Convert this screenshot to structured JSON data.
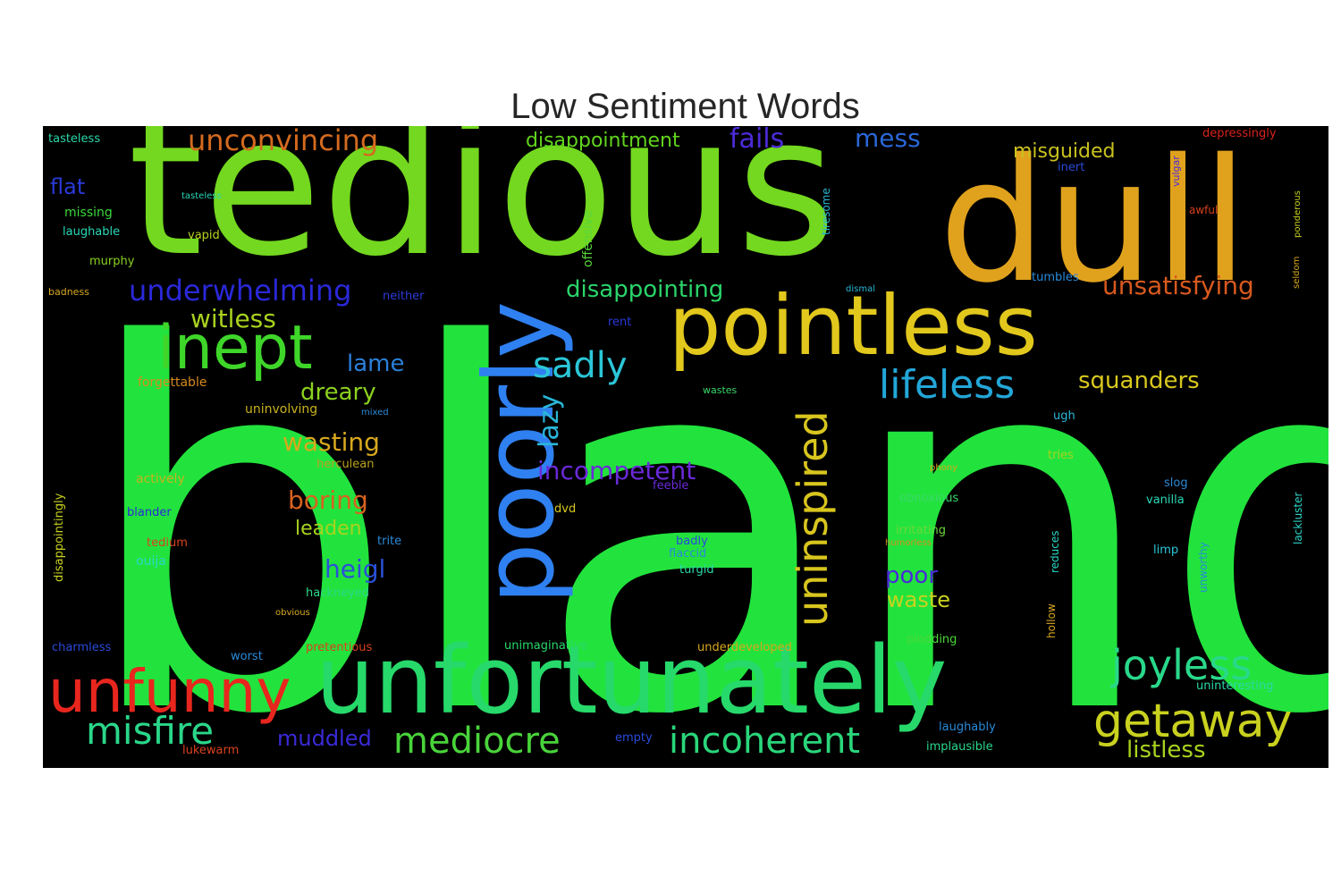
{
  "title": "Low Sentiment Words",
  "words": [
    {
      "text": "bland",
      "color": "#22e33d"
    },
    {
      "text": "tedious",
      "color": "#73d81f"
    },
    {
      "text": "dull",
      "color": "#e0a21d"
    },
    {
      "text": "pointless",
      "color": "#e2c81c"
    },
    {
      "text": "unfortunately",
      "color": "#26d96a"
    },
    {
      "text": "poorly",
      "color": "#2f80f0"
    },
    {
      "text": "inept",
      "color": "#3fd62a"
    },
    {
      "text": "unfunny",
      "color": "#e8261e"
    },
    {
      "text": "getaway",
      "color": "#c9d11f"
    },
    {
      "text": "joyless",
      "color": "#29d88a"
    },
    {
      "text": "uninspired",
      "color": "#d8c51e"
    },
    {
      "text": "lifeless",
      "color": "#22a7d8"
    },
    {
      "text": "sadly",
      "color": "#2bc6d8"
    },
    {
      "text": "mediocre",
      "color": "#49d43a"
    },
    {
      "text": "incoherent",
      "color": "#2ad67a"
    },
    {
      "text": "misfire",
      "color": "#2ad78a"
    },
    {
      "text": "underwhelming",
      "color": "#2a28d8"
    },
    {
      "text": "unconvincing",
      "color": "#d46a1e"
    },
    {
      "text": "disappointment",
      "color": "#62d41d"
    },
    {
      "text": "fails",
      "color": "#4c2bd8"
    },
    {
      "text": "mess",
      "color": "#2a67d8"
    },
    {
      "text": "misguided",
      "color": "#c9c21e"
    },
    {
      "text": "unsatisfying",
      "color": "#d8591e"
    },
    {
      "text": "disappointing",
      "color": "#2ad46a"
    },
    {
      "text": "witless",
      "color": "#a8d21e"
    },
    {
      "text": "lame",
      "color": "#2a80d8"
    },
    {
      "text": "dreary",
      "color": "#8cd21e"
    },
    {
      "text": "wasting",
      "color": "#d8a81e"
    },
    {
      "text": "boring",
      "color": "#d8621e"
    },
    {
      "text": "leaden",
      "color": "#a9d21e"
    },
    {
      "text": "heigl",
      "color": "#2a50d8"
    },
    {
      "text": "muddled",
      "color": "#3a2ad8"
    },
    {
      "text": "incompetent",
      "color": "#6a2ad8"
    },
    {
      "text": "lazy",
      "color": "#2ab6d8"
    },
    {
      "text": "squanders",
      "color": "#d8c81e"
    },
    {
      "text": "poor",
      "color": "#4a2ad8"
    },
    {
      "text": "waste",
      "color": "#c8d21e"
    },
    {
      "text": "listless",
      "color": "#a8d21e"
    },
    {
      "text": "flat",
      "color": "#2a3ad8"
    },
    {
      "text": "tasteless",
      "color": "#2ad8a8"
    },
    {
      "text": "missing",
      "color": "#3ad83a"
    },
    {
      "text": "laughable",
      "color": "#2ad8b8"
    },
    {
      "text": "vapid",
      "color": "#b8d21e"
    },
    {
      "text": "murphy",
      "color": "#8ad21e"
    },
    {
      "text": "neither",
      "color": "#2a3ad8"
    },
    {
      "text": "forgettable",
      "color": "#d88a1e"
    },
    {
      "text": "uninvolving",
      "color": "#c8b21e"
    },
    {
      "text": "mixed",
      "color": "#2a8ad8"
    },
    {
      "text": "actively",
      "color": "#c8b21e"
    },
    {
      "text": "herculean",
      "color": "#b8a21e"
    },
    {
      "text": "blander",
      "color": "#2a2ad8"
    },
    {
      "text": "tedium",
      "color": "#d8421e"
    },
    {
      "text": "ouija",
      "color": "#2ad8c8"
    },
    {
      "text": "hackneyed",
      "color": "#2ad88a"
    },
    {
      "text": "trite",
      "color": "#2a8ad8"
    },
    {
      "text": "charmless",
      "color": "#2a4ad8"
    },
    {
      "text": "worst",
      "color": "#2a8ad8"
    },
    {
      "text": "pretentious",
      "color": "#d8421e"
    },
    {
      "text": "unimaginative",
      "color": "#2ad86a"
    },
    {
      "text": "underdeveloped",
      "color": "#d8a81e"
    },
    {
      "text": "lukewarm",
      "color": "#d8421e"
    },
    {
      "text": "empty",
      "color": "#2a4ad8"
    },
    {
      "text": "implausible",
      "color": "#2ad88a"
    },
    {
      "text": "laughably",
      "color": "#2a8ad8"
    },
    {
      "text": "uninteresting",
      "color": "#2ad8a8"
    },
    {
      "text": "ugh",
      "color": "#2ab8d8"
    },
    {
      "text": "tries",
      "color": "#a8d21e"
    },
    {
      "text": "phony",
      "color": "#d8a81e"
    },
    {
      "text": "obnoxious",
      "color": "#3ad86a"
    },
    {
      "text": "irritating",
      "color": "#6ad83a"
    },
    {
      "text": "humorless",
      "color": "#d88a1e"
    },
    {
      "text": "vanilla",
      "color": "#2ad8b8"
    },
    {
      "text": "limp",
      "color": "#2ac8d8"
    },
    {
      "text": "slog",
      "color": "#2a8ad8"
    },
    {
      "text": "badly",
      "color": "#2a4ad8"
    },
    {
      "text": "flaccid",
      "color": "#2a8ad8"
    },
    {
      "text": "turgid",
      "color": "#2ad8a8"
    },
    {
      "text": "dvd",
      "color": "#d8c81e"
    },
    {
      "text": "feeble",
      "color": "#6a2ad8"
    },
    {
      "text": "plodding",
      "color": "#4ad83a"
    },
    {
      "text": "dismal",
      "color": "#2ab8d8"
    },
    {
      "text": "tumbles",
      "color": "#2a8ad8"
    },
    {
      "text": "rent",
      "color": "#2a3ad8"
    },
    {
      "text": "wastes",
      "color": "#3ad86a"
    },
    {
      "text": "awful",
      "color": "#d8421e"
    },
    {
      "text": "depressingly",
      "color": "#d8221e"
    },
    {
      "text": "inert",
      "color": "#2a4ad8"
    },
    {
      "text": "sinks",
      "color": "#d86a1e"
    },
    {
      "text": "vulgar",
      "color": "#4a2ad8"
    },
    {
      "text": "seldom",
      "color": "#d8a81e"
    },
    {
      "text": "offensive",
      "color": "#5ad83a"
    },
    {
      "text": "tiresome",
      "color": "#2ab8d8"
    },
    {
      "text": "ponderous",
      "color": "#c8d21e"
    },
    {
      "text": "tasteless",
      "color": "#2ad8b8"
    },
    {
      "text": "lackluster",
      "color": "#2ad8c8"
    },
    {
      "text": "unworthy",
      "color": "#2a8ad8"
    },
    {
      "text": "hollow",
      "color": "#d8a81e"
    },
    {
      "text": "reduces",
      "color": "#2ad8c8"
    },
    {
      "text": "disappointingly",
      "color": "#c8d21e"
    },
    {
      "text": "obvious",
      "color": "#d8a81e"
    },
    {
      "text": "badness",
      "color": "#d8a81e"
    }
  ]
}
